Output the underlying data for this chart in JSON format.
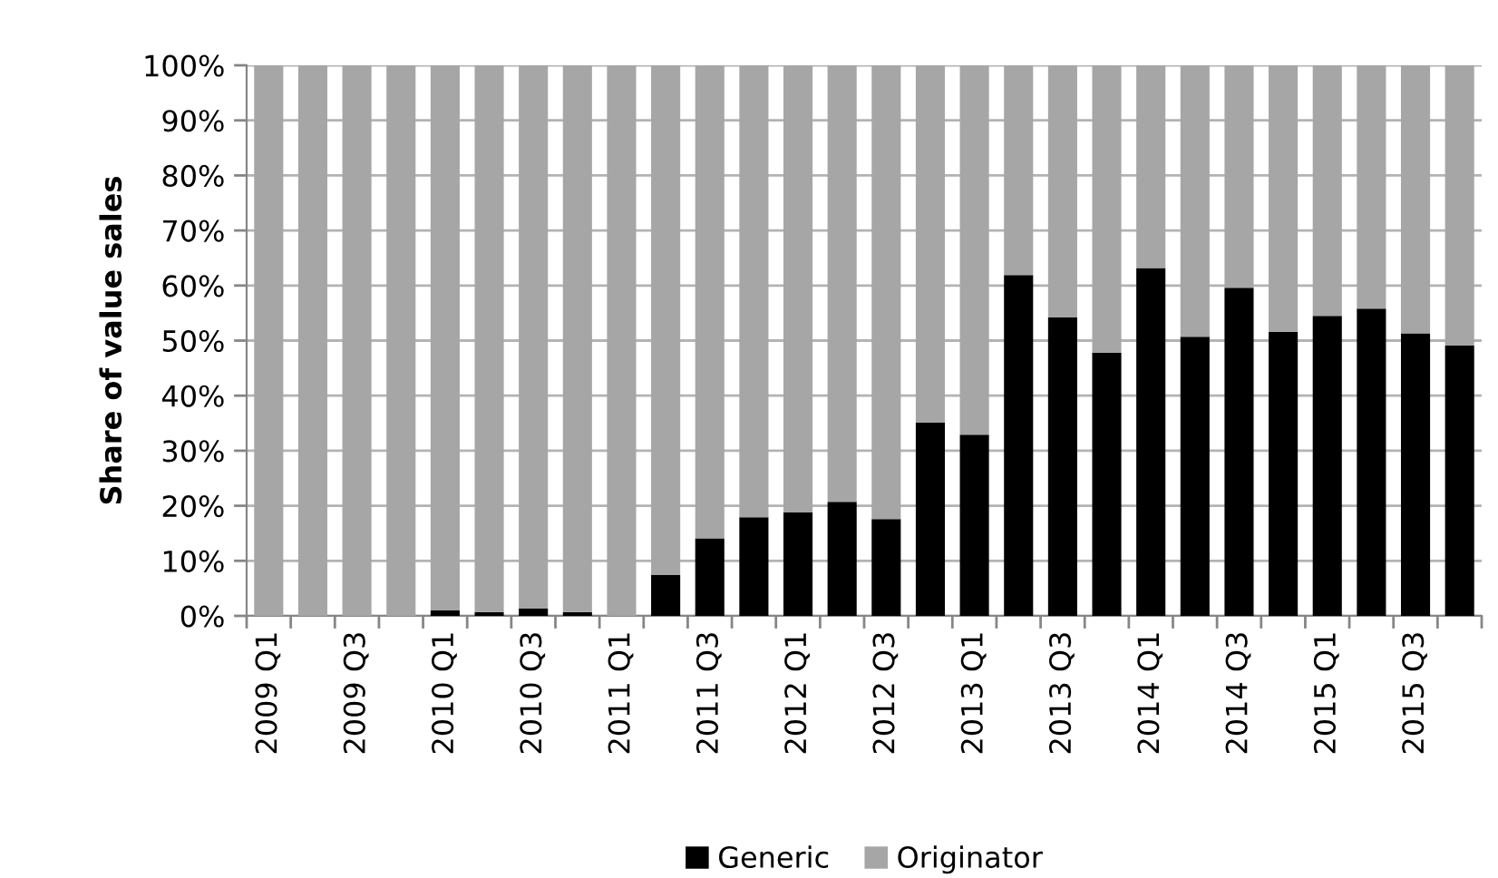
{
  "chart_data": {
    "type": "bar",
    "stacked": true,
    "ylabel": "Share of value sales",
    "categories": [
      "2009 Q1",
      null,
      "2009 Q3",
      null,
      "2010 Q1",
      null,
      "2010 Q3",
      null,
      "2011 Q1",
      null,
      "2011 Q3",
      null,
      "2012 Q1",
      null,
      "2012 Q3",
      null,
      "2013 Q1",
      null,
      "2013 Q3",
      null,
      "2014 Q1",
      null,
      "2014 Q3",
      null,
      "2015 Q1",
      null,
      "2015 Q3",
      null
    ],
    "series": [
      {
        "name": "Generic",
        "color": "#000000",
        "values": [
          0,
          0,
          0,
          0,
          1,
          0.7,
          1.3,
          0.7,
          0,
          7.4,
          14.1,
          17.9,
          18.8,
          20.7,
          17.6,
          35.1,
          32.9,
          61.9,
          54.2,
          47.8,
          63.2,
          50.7,
          59.6,
          51.6,
          54.5,
          55.8,
          51.3,
          49.1
        ]
      },
      {
        "name": "Originator",
        "color": "#a6a6a6",
        "values": [
          100,
          100,
          100,
          100,
          99,
          99.3,
          98.7,
          99.3,
          100,
          92.6,
          85.9,
          82.1,
          81.2,
          79.3,
          82.4,
          64.9,
          67.1,
          38.1,
          45.8,
          52.2,
          36.8,
          49.3,
          40.4,
          48.4,
          45.5,
          44.2,
          48.7,
          50.9
        ]
      }
    ],
    "ylim": [
      0,
      100
    ],
    "yticks": [
      {
        "value": 0,
        "label": "0%"
      },
      {
        "value": 10,
        "label": "10%"
      },
      {
        "value": 20,
        "label": "20%"
      },
      {
        "value": 30,
        "label": "30%"
      },
      {
        "value": 40,
        "label": "40%"
      },
      {
        "value": 50,
        "label": "50%"
      },
      {
        "value": 60,
        "label": "60%"
      },
      {
        "value": 70,
        "label": "70%"
      },
      {
        "value": 80,
        "label": "80%"
      },
      {
        "value": 90,
        "label": "90%"
      },
      {
        "value": 100,
        "label": "100%"
      }
    ],
    "grid": "y",
    "legend": "bottom"
  }
}
